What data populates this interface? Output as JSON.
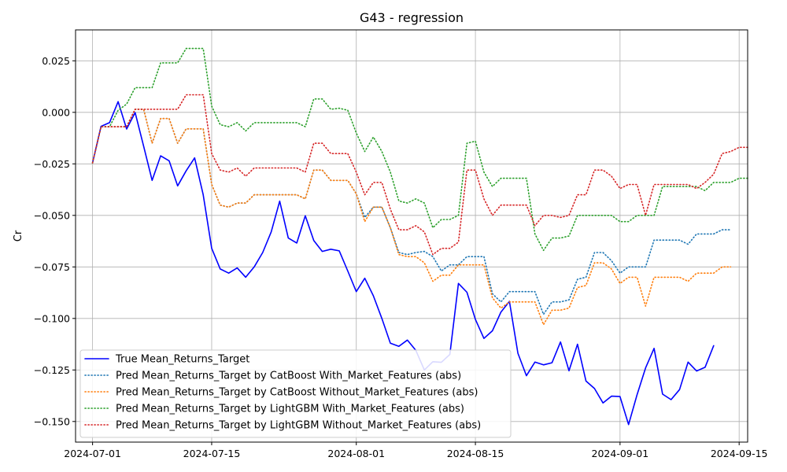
{
  "chart_data": {
    "type": "line",
    "title": "G43 - regression",
    "xlabel": "",
    "ylabel": "Cr",
    "xlim": [
      "2024-06-29",
      "2024-09-16"
    ],
    "ylim": [
      -0.16,
      0.04
    ],
    "grid": true,
    "legend_position": "lower-left",
    "x_ticks": [
      "2024-07-01",
      "2024-07-15",
      "2024-08-01",
      "2024-08-15",
      "2024-09-01",
      "2024-09-15"
    ],
    "y_ticks": [
      0.025,
      0.0,
      -0.025,
      -0.05,
      -0.075,
      -0.1,
      -0.125,
      -0.15
    ],
    "y_tick_labels": [
      "0.025",
      "0.000",
      "−0.025",
      "−0.050",
      "−0.075",
      "−0.100",
      "−0.125",
      "−0.150"
    ],
    "x_start": "2024-07-01",
    "series": [
      {
        "name": "True Mean_Returns_Target",
        "color": "#0000ff",
        "style": "solid",
        "values": [
          -0.0245,
          -0.0068,
          -0.005,
          0.0052,
          -0.0081,
          -0.0001,
          -0.0164,
          -0.033,
          -0.0211,
          -0.0235,
          -0.0357,
          -0.0284,
          -0.0221,
          -0.04,
          -0.066,
          -0.076,
          -0.078,
          -0.0755,
          -0.08,
          -0.075,
          -0.068,
          -0.058,
          -0.0431,
          -0.061,
          -0.0634,
          -0.0502,
          -0.0622,
          -0.0675,
          -0.0664,
          -0.0672,
          -0.077,
          -0.087,
          -0.0805,
          -0.089,
          -0.1,
          -0.112,
          -0.1135,
          -0.1105,
          -0.1155,
          -0.125,
          -0.121,
          -0.1213,
          -0.1175,
          -0.083,
          -0.0873,
          -0.1005,
          -0.1097,
          -0.106,
          -0.0969,
          -0.0917,
          -0.1169,
          -0.1278,
          -0.1212,
          -0.1225,
          -0.1215,
          -0.1114,
          -0.1254,
          -0.1125,
          -0.1304,
          -0.134,
          -0.141,
          -0.1377,
          -0.1379,
          -0.1515,
          -0.137,
          -0.124,
          -0.1145,
          -0.1367,
          -0.1394,
          -0.1345,
          -0.1212,
          -0.1255,
          -0.1237,
          -0.1132
        ]
      },
      {
        "name": "Pred Mean_Returns_Target by CatBoost With_Market_Features (abs)",
        "color": "#1f77b4",
        "style": "dotted",
        "values": [
          -0.0245,
          -0.007,
          -0.007,
          -0.007,
          -0.007,
          0.0015,
          0.0015,
          -0.015,
          -0.003,
          -0.003,
          -0.015,
          -0.008,
          -0.008,
          -0.008,
          -0.035,
          -0.045,
          -0.046,
          -0.044,
          -0.044,
          -0.04,
          -0.04,
          -0.04,
          -0.04,
          -0.04,
          -0.04,
          -0.042,
          -0.028,
          -0.028,
          -0.033,
          -0.033,
          -0.033,
          -0.0395,
          -0.051,
          -0.046,
          -0.046,
          -0.056,
          -0.068,
          -0.069,
          -0.068,
          -0.0675,
          -0.07,
          -0.077,
          -0.074,
          -0.074,
          -0.07,
          -0.07,
          -0.07,
          -0.088,
          -0.092,
          -0.087,
          -0.087,
          -0.087,
          -0.087,
          -0.098,
          -0.092,
          -0.092,
          -0.091,
          -0.081,
          -0.08,
          -0.068,
          -0.068,
          -0.072,
          -0.078,
          -0.075,
          -0.075,
          -0.075,
          -0.062,
          -0.062,
          -0.062,
          -0.062,
          -0.064,
          -0.059,
          -0.059,
          -0.059,
          -0.057,
          -0.057
        ]
      },
      {
        "name": "Pred Mean_Returns_Target by CatBoost Without_Market_Features (abs)",
        "color": "#ff7f0e",
        "style": "dotted",
        "values": [
          -0.0245,
          -0.007,
          -0.007,
          -0.007,
          -0.007,
          0.0015,
          0.0015,
          -0.015,
          -0.003,
          -0.003,
          -0.015,
          -0.008,
          -0.008,
          -0.008,
          -0.035,
          -0.045,
          -0.046,
          -0.044,
          -0.044,
          -0.04,
          -0.04,
          -0.04,
          -0.04,
          -0.04,
          -0.04,
          -0.042,
          -0.028,
          -0.028,
          -0.033,
          -0.033,
          -0.033,
          -0.0395,
          -0.053,
          -0.046,
          -0.046,
          -0.056,
          -0.069,
          -0.07,
          -0.07,
          -0.073,
          -0.082,
          -0.079,
          -0.079,
          -0.074,
          -0.074,
          -0.074,
          -0.074,
          -0.09,
          -0.095,
          -0.092,
          -0.092,
          -0.092,
          -0.092,
          -0.103,
          -0.096,
          -0.096,
          -0.095,
          -0.085,
          -0.084,
          -0.073,
          -0.073,
          -0.076,
          -0.083,
          -0.08,
          -0.08,
          -0.094,
          -0.08,
          -0.08,
          -0.08,
          -0.08,
          -0.082,
          -0.078,
          -0.078,
          -0.078,
          -0.075,
          -0.075
        ]
      },
      {
        "name": "Pred Mean_Returns_Target by LightGBM With_Market_Features (abs)",
        "color": "#2ca02c",
        "style": "dotted",
        "values": [
          -0.0245,
          -0.007,
          -0.007,
          0.001,
          0.004,
          0.012,
          0.012,
          0.012,
          0.024,
          0.024,
          0.024,
          0.031,
          0.031,
          0.031,
          0.003,
          -0.006,
          -0.007,
          -0.005,
          -0.009,
          -0.005,
          -0.005,
          -0.005,
          -0.005,
          -0.005,
          -0.005,
          -0.007,
          0.0065,
          0.0065,
          0.0015,
          0.002,
          0.001,
          -0.01,
          -0.019,
          -0.012,
          -0.019,
          -0.029,
          -0.043,
          -0.044,
          -0.042,
          -0.044,
          -0.056,
          -0.052,
          -0.052,
          -0.05,
          -0.015,
          -0.014,
          -0.029,
          -0.036,
          -0.032,
          -0.032,
          -0.032,
          -0.032,
          -0.059,
          -0.067,
          -0.061,
          -0.061,
          -0.06,
          -0.05,
          -0.05,
          -0.05,
          -0.05,
          -0.05,
          -0.053,
          -0.053,
          -0.05,
          -0.05,
          -0.05,
          -0.036,
          -0.036,
          -0.036,
          -0.036,
          -0.036,
          -0.038,
          -0.034,
          -0.034,
          -0.034,
          -0.032,
          -0.032
        ]
      },
      {
        "name": "Pred Mean_Returns_Target by LightGBM Without_Market_Features (abs)",
        "color": "#d62728",
        "style": "dotted",
        "values": [
          -0.0245,
          -0.007,
          -0.007,
          -0.007,
          -0.007,
          0.0015,
          0.0015,
          0.0015,
          0.0015,
          0.0015,
          0.0015,
          0.0085,
          0.0085,
          0.0085,
          -0.02,
          -0.028,
          -0.029,
          -0.027,
          -0.031,
          -0.027,
          -0.027,
          -0.027,
          -0.027,
          -0.027,
          -0.027,
          -0.029,
          -0.015,
          -0.015,
          -0.02,
          -0.02,
          -0.02,
          -0.029,
          -0.04,
          -0.034,
          -0.034,
          -0.047,
          -0.057,
          -0.057,
          -0.055,
          -0.058,
          -0.069,
          -0.066,
          -0.066,
          -0.063,
          -0.028,
          -0.028,
          -0.042,
          -0.05,
          -0.045,
          -0.045,
          -0.045,
          -0.045,
          -0.055,
          -0.05,
          -0.05,
          -0.051,
          -0.05,
          -0.04,
          -0.04,
          -0.028,
          -0.028,
          -0.031,
          -0.037,
          -0.035,
          -0.035,
          -0.05,
          -0.035,
          -0.035,
          -0.035,
          -0.035,
          -0.035,
          -0.037,
          -0.034,
          -0.03,
          -0.02,
          -0.019,
          -0.017,
          -0.017
        ]
      }
    ]
  }
}
